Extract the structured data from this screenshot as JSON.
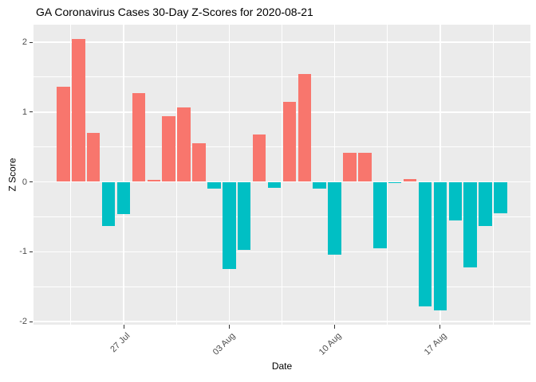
{
  "chart_data": {
    "type": "bar",
    "title": "GA Coronavirus Cases 30-Day Z-Scores for 2020-08-21",
    "xlabel": "Date",
    "ylabel": "Z Score",
    "x": [
      "2020-07-23",
      "2020-07-24",
      "2020-07-25",
      "2020-07-26",
      "2020-07-27",
      "2020-07-28",
      "2020-07-29",
      "2020-07-30",
      "2020-07-31",
      "2020-08-01",
      "2020-08-02",
      "2020-08-03",
      "2020-08-04",
      "2020-08-05",
      "2020-08-06",
      "2020-08-07",
      "2020-08-08",
      "2020-08-09",
      "2020-08-10",
      "2020-08-11",
      "2020-08-12",
      "2020-08-13",
      "2020-08-14",
      "2020-08-15",
      "2020-08-16",
      "2020-08-17",
      "2020-08-18",
      "2020-08-19",
      "2020-08-20",
      "2020-08-21"
    ],
    "values": [
      1.36,
      2.05,
      0.7,
      -0.63,
      -0.46,
      1.27,
      0.03,
      0.94,
      1.07,
      0.55,
      -0.1,
      -1.25,
      -0.97,
      0.68,
      -0.08,
      1.14,
      1.54,
      -0.1,
      -1.04,
      0.42,
      0.42,
      -0.95,
      -0.02,
      0.04,
      -1.78,
      -1.84,
      -0.55,
      -1.22,
      -0.63,
      -0.45
    ],
    "x_tick_labels": [
      "27 Jul",
      "03 Aug",
      "10 Aug",
      "17 Aug"
    ],
    "x_tick_indices": [
      4,
      11,
      18,
      25
    ],
    "y_ticks": [
      2,
      1,
      0,
      -1,
      -2
    ],
    "y_minor_ticks": [
      1.5,
      0.5,
      -0.5,
      -1.5
    ],
    "x_minor_indices": [
      0.5,
      7.5,
      14.5,
      21.5,
      28.5
    ],
    "ylim": [
      -2.05,
      2.26
    ],
    "grid": "on",
    "legend": "none",
    "positive_color": "#F8766D",
    "negative_color": "#00BFC4",
    "panel_background": "#EBEBEB",
    "grid_color": "#FFFFFF",
    "tick_text_color": "#4D4D4D"
  }
}
